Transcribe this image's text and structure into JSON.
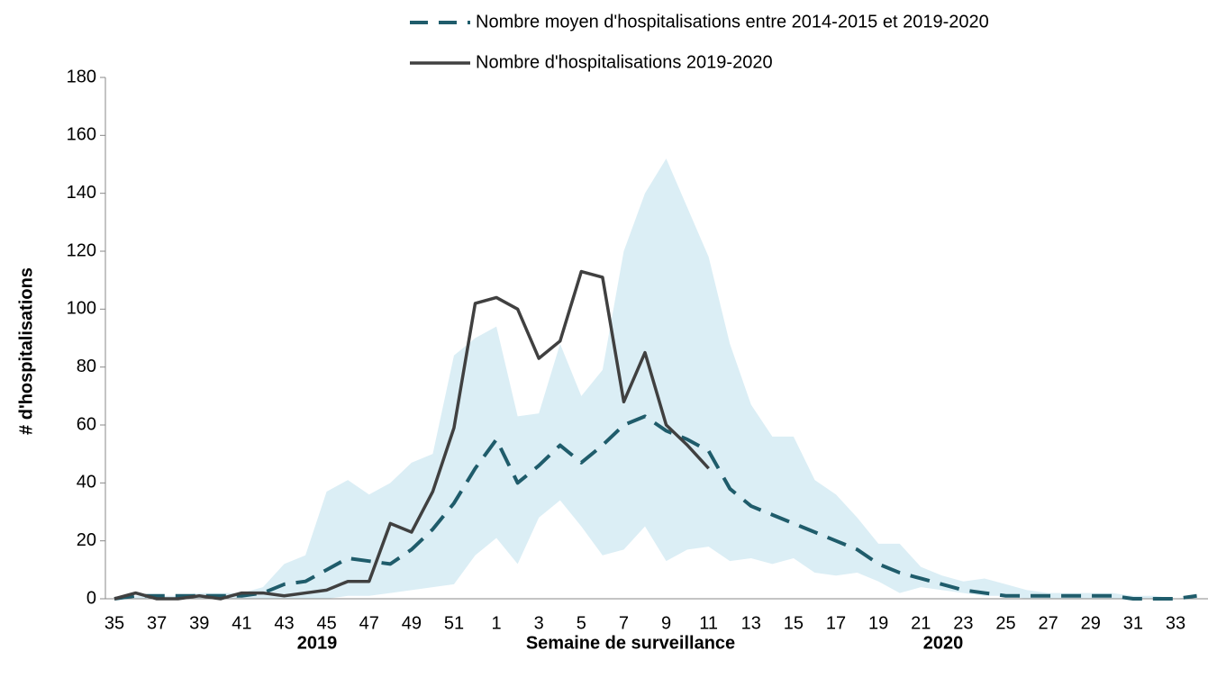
{
  "chart_data": {
    "type": "line",
    "y_label": "# d'hospitalisations",
    "x_label": "Semaine de surveillance",
    "year_labels": [
      "2019",
      "2020"
    ],
    "categories": [
      "35",
      null,
      "37",
      null,
      "39",
      null,
      "41",
      null,
      "43",
      null,
      "45",
      null,
      "47",
      null,
      "49",
      null,
      "51",
      null,
      "1",
      null,
      "3",
      null,
      "5",
      null,
      "7",
      null,
      "9",
      null,
      "11",
      null,
      "13",
      null,
      "15",
      null,
      "17",
      null,
      "19",
      null,
      "21",
      null,
      "23",
      null,
      "25",
      null,
      "27",
      null,
      "29",
      null,
      "31",
      null,
      "33",
      null
    ],
    "ylim": [
      0,
      180
    ],
    "yticks": [
      0,
      20,
      40,
      60,
      80,
      100,
      120,
      140,
      160,
      180
    ],
    "range": {
      "color": "#dbeef5",
      "upper": [
        0,
        1,
        1,
        1,
        2,
        2,
        2,
        4,
        12,
        15,
        37,
        41,
        36,
        40,
        47,
        50,
        84,
        90,
        94,
        63,
        64,
        88,
        70,
        79,
        120,
        140,
        152,
        135,
        118,
        88,
        67,
        56,
        56,
        41,
        36,
        28,
        19,
        19,
        11,
        8,
        6,
        7,
        5,
        3,
        2,
        2,
        2,
        2,
        1,
        1,
        0,
        1
      ],
      "lower": [
        0,
        0,
        0,
        0,
        0,
        0,
        0,
        0,
        0,
        0,
        0,
        1,
        1,
        2,
        3,
        4,
        5,
        15,
        21,
        12,
        28,
        34,
        25,
        15,
        17,
        25,
        13,
        17,
        18,
        13,
        14,
        12,
        14,
        9,
        8,
        9,
        6,
        2,
        4,
        3,
        2,
        1,
        1,
        0,
        0,
        0,
        0,
        0,
        0,
        0,
        0,
        0
      ]
    },
    "series": [
      {
        "name": "Nombre moyen d'hospitalisations entre 2014-2015 et 2019-2020",
        "color": "#1f5c6b",
        "dashed": true,
        "values": [
          0,
          1,
          1,
          1,
          1,
          1,
          1,
          2,
          5,
          6,
          10,
          14,
          13,
          12,
          17,
          24,
          33,
          45,
          55,
          40,
          46,
          53,
          47,
          53,
          60,
          63,
          58,
          55,
          51,
          38,
          32,
          29,
          26,
          23,
          20,
          17,
          12,
          9,
          7,
          5,
          3,
          2,
          1,
          1,
          1,
          1,
          1,
          1,
          0,
          0,
          0,
          1
        ]
      },
      {
        "name": "Nombre d'hospitalisations 2019-2020",
        "color": "#404040",
        "dashed": false,
        "values": [
          0,
          2,
          0,
          0,
          1,
          0,
          2,
          2,
          1,
          2,
          3,
          6,
          6,
          26,
          23,
          37,
          59,
          102,
          104,
          100,
          83,
          89,
          113,
          111,
          68,
          85,
          60,
          53,
          45,
          null,
          null,
          null,
          null,
          null,
          null,
          null,
          null,
          null,
          null,
          null,
          null,
          null,
          null,
          null,
          null,
          null,
          null,
          null,
          null,
          null,
          null,
          null
        ]
      }
    ]
  }
}
